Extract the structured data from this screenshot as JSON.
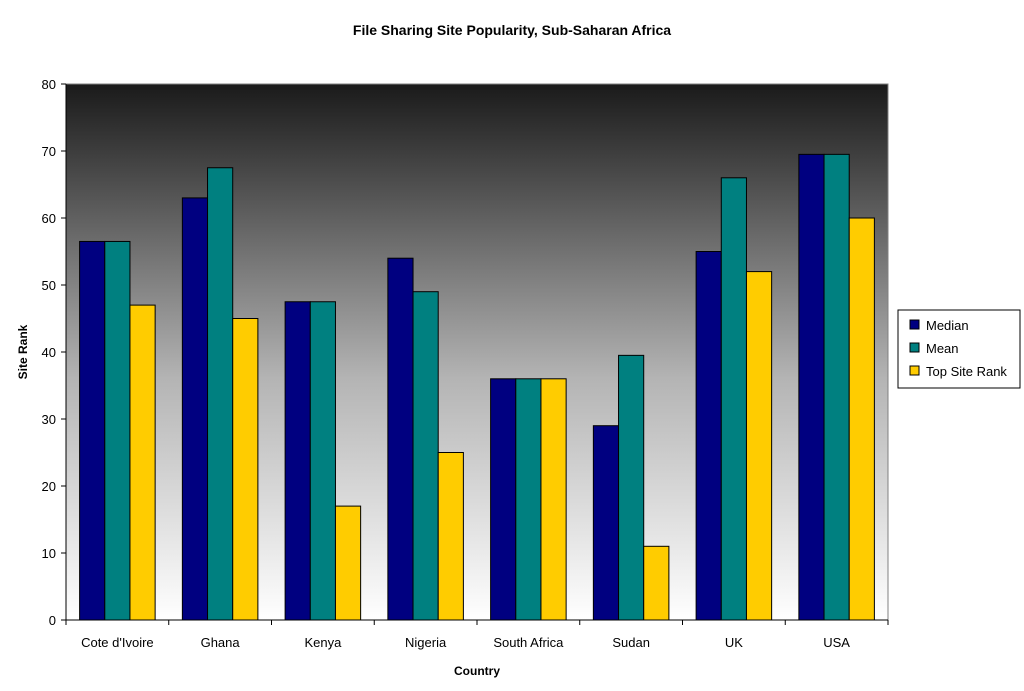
{
  "chart_data": {
    "type": "bar",
    "title": "File Sharing Site Popularity, Sub-Saharan Africa",
    "xlabel": "Country",
    "ylabel": "Site Rank",
    "ylim": [
      0,
      80
    ],
    "yticks": [
      0,
      10,
      20,
      30,
      40,
      50,
      60,
      70,
      80
    ],
    "categories": [
      "Cote d'Ivoire",
      "Ghana",
      "Kenya",
      "Nigeria",
      "South Africa",
      "Sudan",
      "UK",
      "USA"
    ],
    "series": [
      {
        "name": "Median",
        "color": "#000080",
        "values": [
          56.5,
          63,
          47.5,
          54,
          36,
          29,
          55,
          69.5
        ]
      },
      {
        "name": "Mean",
        "color": "#008080",
        "values": [
          56.5,
          67.5,
          47.5,
          49,
          36,
          39.5,
          66,
          69.5
        ]
      },
      {
        "name": "Top Site Rank",
        "color": "#FFCC00",
        "values": [
          47,
          45,
          17,
          25,
          36,
          11,
          52,
          60
        ]
      }
    ],
    "legend_position": "right",
    "grid": false,
    "plot_background": "gradient dark-to-white"
  }
}
